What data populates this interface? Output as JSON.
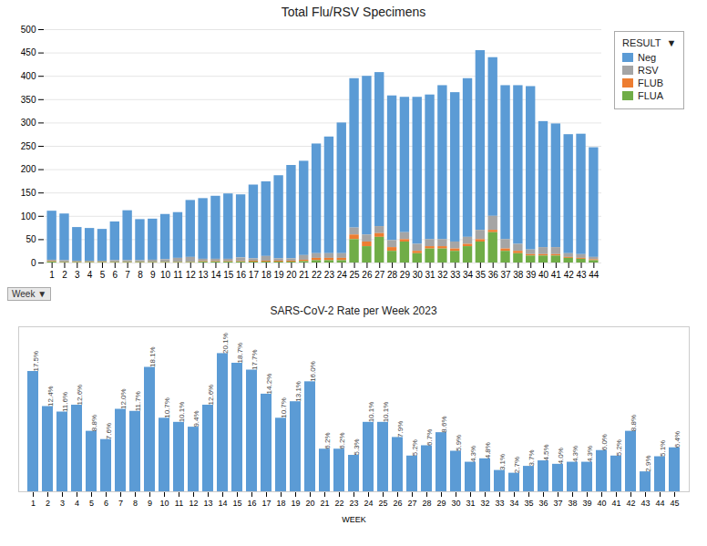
{
  "chart_data": [
    {
      "type": "bar",
      "title": "Total Flu/RSV Specimens",
      "stacked": true,
      "categories": [
        1,
        2,
        3,
        4,
        5,
        6,
        7,
        8,
        9,
        10,
        11,
        12,
        13,
        14,
        15,
        16,
        17,
        18,
        19,
        20,
        21,
        22,
        23,
        24,
        25,
        26,
        27,
        28,
        29,
        30,
        31,
        32,
        33,
        34,
        35,
        36,
        37,
        38,
        39,
        40,
        41,
        42,
        43,
        44
      ],
      "series": [
        {
          "name": "Neg",
          "color": "#5b9bd5",
          "values": [
            105,
            100,
            72,
            70,
            68,
            83,
            107,
            88,
            88,
            97,
            98,
            122,
            130,
            135,
            140,
            135,
            158,
            160,
            178,
            200,
            202,
            235,
            250,
            280,
            320,
            340,
            330,
            310,
            290,
            315,
            310,
            330,
            320,
            340,
            385,
            340,
            330,
            340,
            350,
            270,
            265,
            255,
            258,
            235
          ]
        },
        {
          "name": "RSV",
          "color": "#a5a5a5",
          "values": [
            3,
            3,
            2,
            2,
            2,
            3,
            3,
            3,
            4,
            5,
            8,
            10,
            5,
            5,
            5,
            8,
            5,
            10,
            5,
            5,
            10,
            10,
            10,
            10,
            15,
            15,
            15,
            15,
            15,
            15,
            15,
            15,
            15,
            15,
            20,
            30,
            20,
            15,
            10,
            15,
            15,
            8,
            8,
            5
          ]
        },
        {
          "name": "FLUB",
          "color": "#ed7d31",
          "values": [
            1,
            1,
            1,
            1,
            1,
            1,
            1,
            1,
            1,
            1,
            1,
            1,
            1,
            1,
            1,
            1,
            2,
            2,
            2,
            2,
            3,
            5,
            5,
            5,
            10,
            10,
            8,
            8,
            5,
            5,
            5,
            5,
            5,
            5,
            5,
            5,
            5,
            5,
            3,
            3,
            3,
            2,
            2,
            2
          ]
        },
        {
          "name": "FLUA",
          "color": "#70ad47",
          "values": [
            2,
            1,
            1,
            1,
            1,
            1,
            1,
            1,
            1,
            1,
            1,
            1,
            2,
            2,
            2,
            2,
            2,
            2,
            2,
            2,
            3,
            5,
            5,
            5,
            50,
            35,
            55,
            25,
            45,
            20,
            30,
            30,
            25,
            35,
            45,
            65,
            25,
            20,
            15,
            15,
            15,
            10,
            8,
            5
          ]
        }
      ],
      "ylim": [
        0,
        500
      ],
      "yticks": [
        0,
        50,
        100,
        150,
        200,
        250,
        300,
        350,
        400,
        450,
        500
      ],
      "grid": true,
      "legend": "right",
      "legend_title": "RESULT  ▼",
      "annotations": [
        "Week ▼"
      ]
    },
    {
      "type": "bar",
      "title": "SARS-CoV-2 Rate per Week 2023",
      "xlabel": "WEEK",
      "categories": [
        1,
        2,
        3,
        4,
        5,
        6,
        7,
        8,
        9,
        10,
        11,
        12,
        13,
        14,
        15,
        16,
        17,
        18,
        19,
        20,
        21,
        22,
        23,
        24,
        25,
        26,
        27,
        28,
        29,
        30,
        31,
        32,
        33,
        34,
        35,
        36,
        37,
        38,
        39,
        40,
        41,
        42,
        43,
        44,
        45
      ],
      "values": [
        17.5,
        12.4,
        11.6,
        12.6,
        8.8,
        7.6,
        12.0,
        11.7,
        18.1,
        10.7,
        10.1,
        9.4,
        12.6,
        20.1,
        18.7,
        17.7,
        14.2,
        10.7,
        13.1,
        16.0,
        6.2,
        6.2,
        5.3,
        10.1,
        10.1,
        7.9,
        5.2,
        6.7,
        8.6,
        5.9,
        4.3,
        4.8,
        3.1,
        2.7,
        3.7,
        4.5,
        4.0,
        4.3,
        4.3,
        6.0,
        5.2,
        8.8,
        2.9,
        5.1,
        6.4
      ],
      "value_labels": [
        "17.5%",
        "12.4%",
        "11.6%",
        "12.6%",
        "8.8%",
        "7.6%",
        "12.0%",
        "11.7%",
        "18.1%",
        "10.7%",
        "10.1%",
        "9.4%",
        "12.6%",
        "20.1%",
        "18.7%",
        "17.7%",
        "14.2%",
        "10.7%",
        "13.1%",
        "16.0%",
        "6.2%",
        "6.2%",
        "5.3%",
        "10.1%",
        "10.1%",
        "7.9%",
        "5.2%",
        "6.7%",
        "8.6%",
        "5.9%",
        "4.3%",
        "4.8%",
        "3.1%",
        "2.7%",
        "3.7%",
        "4.5%",
        "4.0%",
        "4.3%",
        "4.3%",
        "6.0%",
        "5.2%",
        "8.8%",
        "2.9%",
        "5.1%",
        "6.4%"
      ],
      "color": "#5b9bd5",
      "ylim": [
        0,
        24
      ],
      "yticks": [],
      "tick_labels": "x",
      "data_labels": true
    }
  ]
}
